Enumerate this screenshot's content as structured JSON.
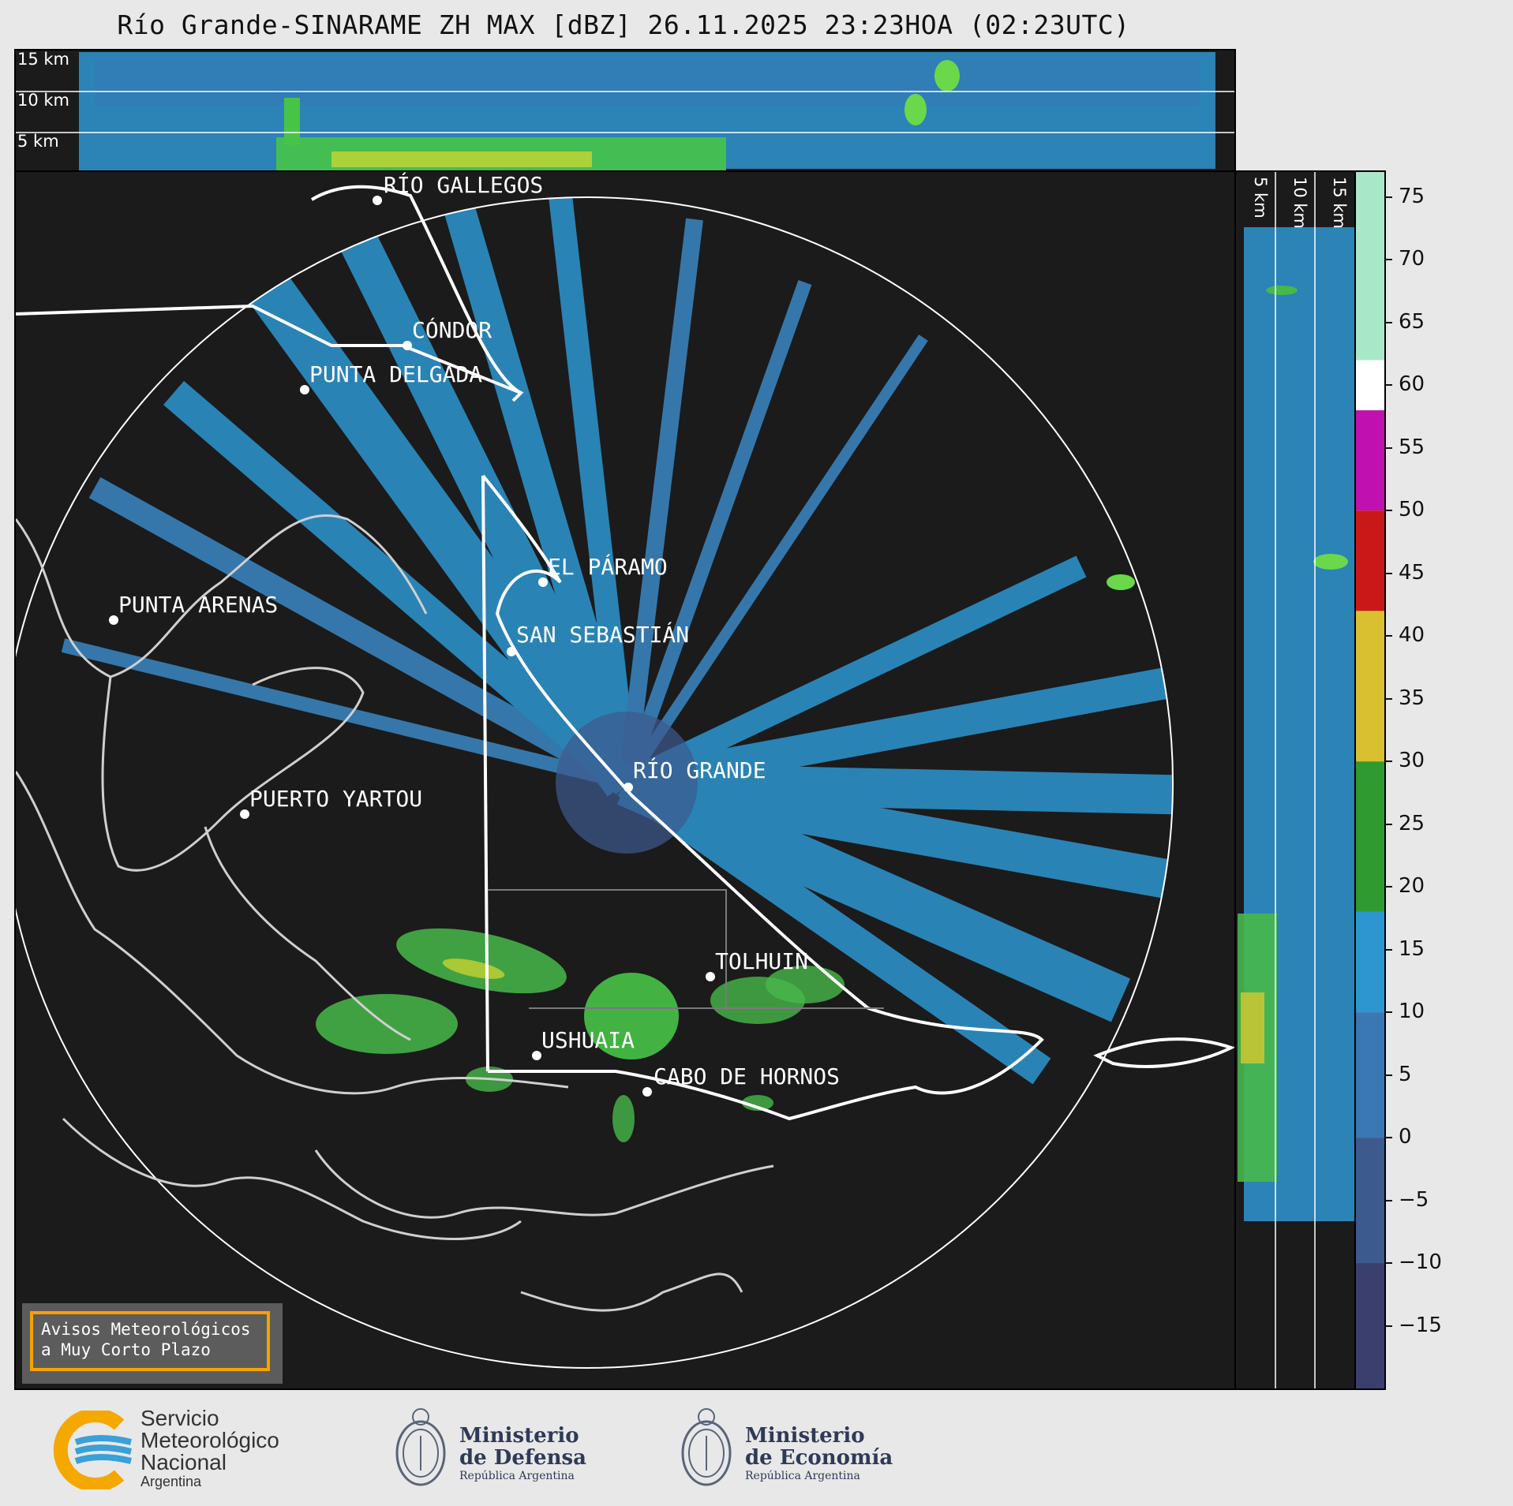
{
  "title": "Río Grande-SINARAME ZH MAX [dBZ] 26.11.2025 23:23HOA (02:23UTC)",
  "height_labels": {
    "top": [
      "15 km",
      "10 km",
      "5 km"
    ],
    "side": [
      "5 km",
      "10 km",
      "15 km"
    ]
  },
  "map_labels": [
    {
      "name": "RÍO GALLEGOS",
      "id": "rio-gallegos"
    },
    {
      "name": "CÓNDOR",
      "id": "condor"
    },
    {
      "name": "PUNTA DELGADA",
      "id": "punta-delgada"
    },
    {
      "name": "EL PÁRAMO",
      "id": "el-paramo"
    },
    {
      "name": "SAN SEBASTIÁN",
      "id": "san-sebastian"
    },
    {
      "name": "PUNTA ARENAS",
      "id": "punta-arenas"
    },
    {
      "name": "RÍO GRANDE",
      "id": "rio-grande"
    },
    {
      "name": "PUERTO YARTOU",
      "id": "puerto-yartou"
    },
    {
      "name": "TOLHUIN",
      "id": "tolhuin"
    },
    {
      "name": "USHUAIA",
      "id": "ushuaia"
    },
    {
      "name": "CABO DE HORNOS",
      "id": "cabo-de-hornos"
    }
  ],
  "colorbar": {
    "unit": "dBZ",
    "ticks": [
      "75",
      "70",
      "65",
      "60",
      "55",
      "50",
      "45",
      "40",
      "35",
      "30",
      "25",
      "20",
      "15",
      "10",
      "5",
      "0",
      "−5",
      "−10",
      "−15"
    ],
    "tick_values": [
      75,
      70,
      65,
      60,
      55,
      50,
      45,
      40,
      35,
      30,
      25,
      20,
      15,
      10,
      5,
      0,
      -5,
      -10,
      -15
    ],
    "range": [
      -20,
      77
    ],
    "bands": [
      {
        "from": -20,
        "to": -10,
        "color": "#3b3f6e"
      },
      {
        "from": -10,
        "to": 0,
        "color": "#3d5a8f"
      },
      {
        "from": 0,
        "to": 10,
        "color": "#3a78b4"
      },
      {
        "from": 10,
        "to": 18,
        "color": "#2d96d0"
      },
      {
        "from": 18,
        "to": 30,
        "color": "#2f9a2f"
      },
      {
        "from": 30,
        "to": 42,
        "color": "#d8c030"
      },
      {
        "from": 42,
        "to": 50,
        "color": "#c81818"
      },
      {
        "from": 50,
        "to": 58,
        "color": "#c010b0"
      },
      {
        "from": 58,
        "to": 62,
        "color": "#ffffff"
      },
      {
        "from": 62,
        "to": 77,
        "color": "#a8e8c8"
      }
    ]
  },
  "alert": {
    "line1": "Avisos Meteorológicos",
    "line2": "a Muy Corto Plazo"
  },
  "footer": {
    "smn": {
      "line1": "Servicio",
      "line2": "Meteorológico",
      "line3": "Nacional",
      "line4": "Argentina"
    },
    "defensa": {
      "line1": "Ministerio",
      "line2": "de Defensa",
      "line3": "República Argentina"
    },
    "economia": {
      "line1": "Ministerio",
      "line2": "de Economía",
      "line3": "República Argentina"
    }
  },
  "colors": {
    "background": "#1b1b1b",
    "echo_weak": "#2d96d0",
    "echo_green": "#47d147",
    "echo_yellow": "#e8e830",
    "accent": "#f4a300"
  }
}
